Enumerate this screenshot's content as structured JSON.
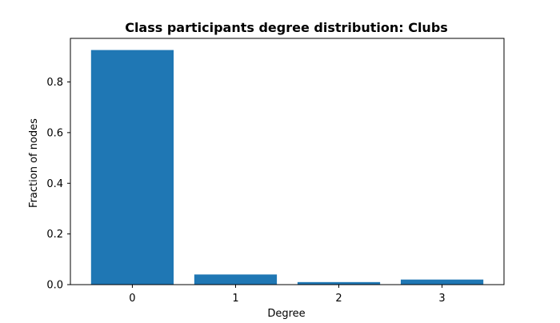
{
  "chart_data": {
    "type": "bar",
    "title": "Class participants degree distribution: Clubs",
    "xlabel": "Degree",
    "ylabel": "Fraction of nodes",
    "categories": [
      "0",
      "1",
      "2",
      "3"
    ],
    "values": [
      0.926,
      0.04,
      0.01,
      0.02
    ],
    "ylim": [
      0,
      0.972
    ],
    "yticks": [
      0.0,
      0.2,
      0.4,
      0.6,
      0.8
    ],
    "ytick_labels": [
      "0.0",
      "0.2",
      "0.4",
      "0.6",
      "0.8"
    ],
    "grid": false,
    "legend": "none",
    "bar_color": "#1f77b4"
  }
}
